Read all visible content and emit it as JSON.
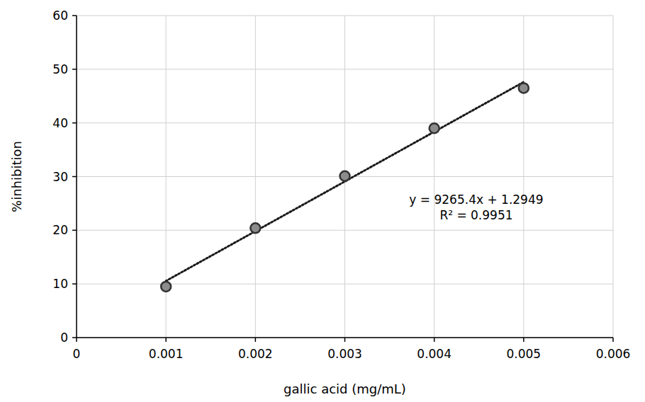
{
  "chart_data": {
    "type": "scatter",
    "x_label": "gallic acid (mg/mL)",
    "y_label": "%inhibition",
    "xlim": [
      0,
      0.006
    ],
    "xticks": [
      0,
      0.001,
      0.002,
      0.003,
      0.004,
      0.005,
      0.006
    ],
    "ylim": [
      0,
      60
    ],
    "yticks": [
      0,
      10,
      20,
      30,
      40,
      50,
      60
    ],
    "grid": true,
    "series": [
      {
        "type": "scatter",
        "marker": "circle",
        "color": "#8c8c8c",
        "x": [
          0.001,
          0.002,
          0.003,
          0.004,
          0.005
        ],
        "values": [
          9.5,
          20.4,
          30.1,
          39.0,
          46.5
        ]
      },
      {
        "type": "line",
        "line_style": "dotted",
        "color": "#1a1a1a",
        "x": [
          0.001,
          0.005
        ],
        "values": [
          10.56,
          47.62
        ]
      }
    ],
    "annotations": [
      "y = 9265.4x + 1.2949",
      "R² = 0.9951"
    ]
  }
}
